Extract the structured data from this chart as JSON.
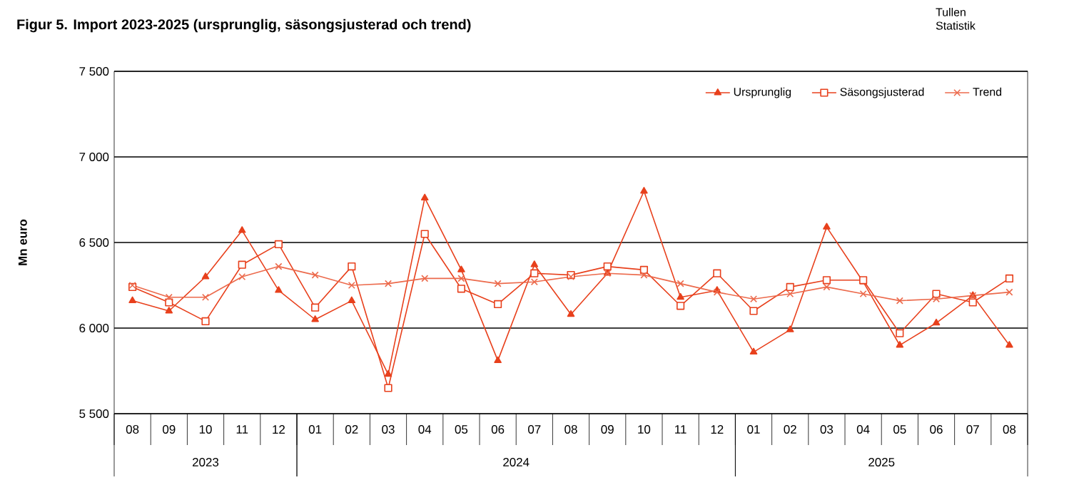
{
  "chart_data": {
    "type": "line",
    "title": "Figur 5. Import 2023-2025  (ursprunglig, säsongsjusterad  och trend)",
    "ylabel": "Mn euro",
    "categories": [
      "08",
      "09",
      "10",
      "11",
      "12",
      "01",
      "02",
      "03",
      "04",
      "05",
      "06",
      "07",
      "08",
      "09",
      "10",
      "11",
      "12",
      "01",
      "02",
      "03",
      "04",
      "05",
      "06",
      "07",
      "08"
    ],
    "series": [
      {
        "name": "Ursprunglig",
        "color": "#e8401c",
        "marker": "triangle",
        "values": [
          6160,
          6100,
          6300,
          6570,
          6220,
          6050,
          6160,
          5730,
          6760,
          6340,
          5810,
          6370,
          6080,
          6320,
          6800,
          6180,
          6220,
          5860,
          5990,
          6590,
          6270,
          5900,
          6030,
          6190,
          5900
        ]
      },
      {
        "name": "Säsongsjusterad",
        "color": "#e8401c",
        "marker": "square",
        "values": [
          6240,
          6150,
          6040,
          6370,
          6490,
          6120,
          6360,
          5650,
          6550,
          6230,
          6140,
          6320,
          6310,
          6360,
          6340,
          6130,
          6320,
          6100,
          6240,
          6280,
          6280,
          5970,
          6200,
          6150,
          6290
        ]
      },
      {
        "name": "Trend",
        "color": "#ec6a4c",
        "marker": "cross",
        "values": [
          6250,
          6180,
          6180,
          6300,
          6360,
          6310,
          6250,
          6260,
          6290,
          6290,
          6260,
          6270,
          6300,
          6320,
          6310,
          6260,
          6210,
          6170,
          6200,
          6240,
          6200,
          6160,
          6170,
          6190,
          6210
        ]
      }
    ],
    "ylim": [
      5500,
      7500
    ],
    "yticks": [
      {
        "value": 5500,
        "label": "5 500"
      },
      {
        "value": 6000,
        "label": "6 000"
      },
      {
        "value": 6500,
        "label": "6 500"
      },
      {
        "value": 7000,
        "label": "7 000"
      },
      {
        "value": 7500,
        "label": "7 500"
      }
    ],
    "grid": "y",
    "legend": "top right",
    "line_style": "solid",
    "annotations": [
      "2023",
      "2024",
      "2025",
      "Tullen Statistik"
    ]
  }
}
